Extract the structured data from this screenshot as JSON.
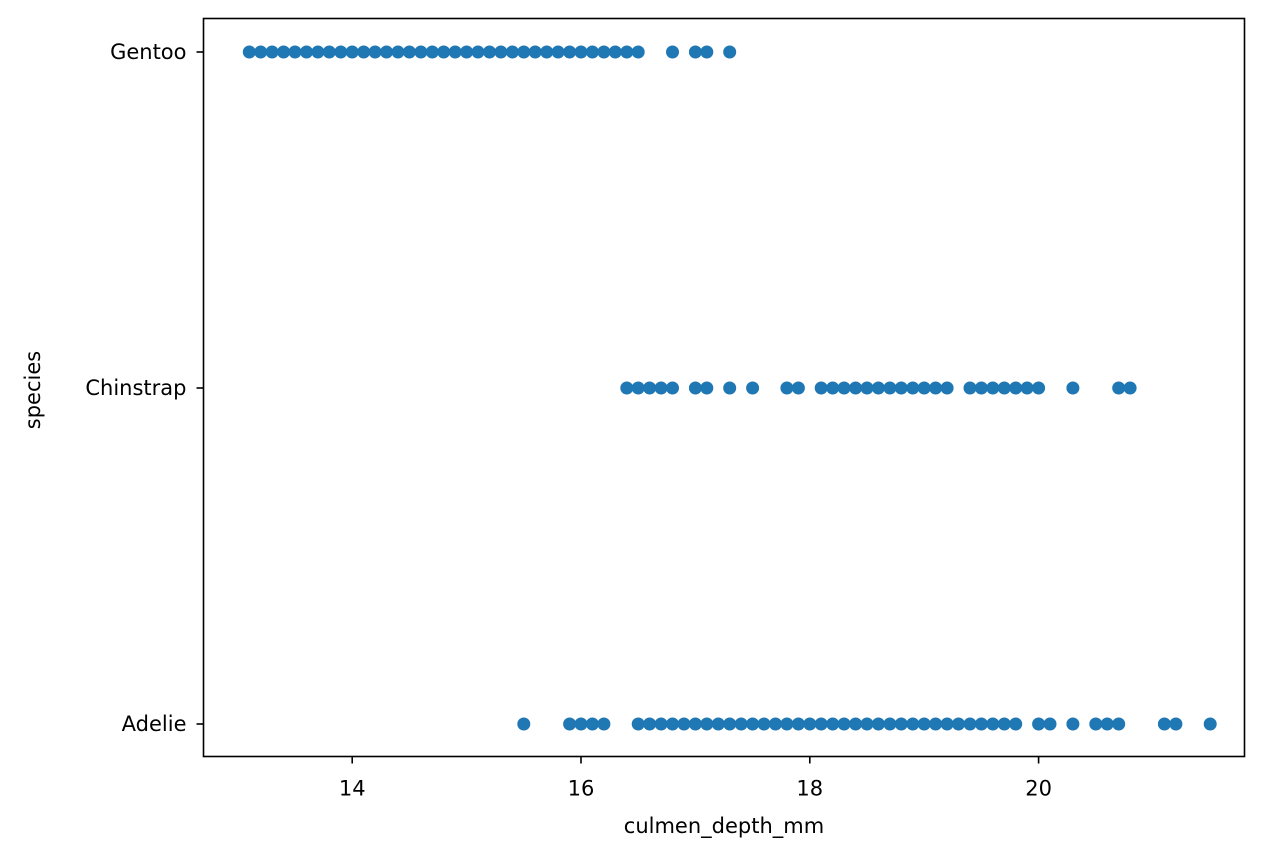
{
  "chart_data": {
    "type": "scatter",
    "title": "",
    "xlabel": "culmen_depth_mm",
    "ylabel": "species",
    "xlim": [
      12.7,
      21.8
    ],
    "xticks": [
      14,
      16,
      18,
      20
    ],
    "xtick_labels": [
      "14",
      "16",
      "18",
      "20"
    ],
    "categories": [
      "Adelie",
      "Chinstrap",
      "Gentoo"
    ],
    "grid": false,
    "marker_color": "#1f77b4",
    "series": [
      {
        "name": "Gentoo",
        "x": [
          13.1,
          13.2,
          13.3,
          13.4,
          13.5,
          13.6,
          13.7,
          13.8,
          13.9,
          14.0,
          14.1,
          14.2,
          14.3,
          14.4,
          14.5,
          14.6,
          14.7,
          14.8,
          14.9,
          15.0,
          15.1,
          15.2,
          15.3,
          15.4,
          15.5,
          15.6,
          15.7,
          15.8,
          15.9,
          16.0,
          16.1,
          16.2,
          16.3,
          16.4,
          16.5,
          16.8,
          17.0,
          17.1,
          17.3
        ]
      },
      {
        "name": "Chinstrap",
        "x": [
          16.4,
          16.5,
          16.6,
          16.7,
          16.8,
          17.0,
          17.1,
          17.3,
          17.5,
          17.8,
          17.9,
          18.1,
          18.2,
          18.3,
          18.4,
          18.5,
          18.6,
          18.7,
          18.8,
          18.9,
          19.0,
          19.1,
          19.2,
          19.4,
          19.5,
          19.6,
          19.7,
          19.8,
          19.9,
          20.0,
          20.3,
          20.7,
          20.8
        ]
      },
      {
        "name": "Adelie",
        "x": [
          15.5,
          15.9,
          16.0,
          16.1,
          16.2,
          16.5,
          16.6,
          16.7,
          16.8,
          16.9,
          17.0,
          17.1,
          17.2,
          17.3,
          17.4,
          17.5,
          17.6,
          17.7,
          17.8,
          17.9,
          18.0,
          18.1,
          18.2,
          18.3,
          18.4,
          18.5,
          18.6,
          18.7,
          18.8,
          18.9,
          19.0,
          19.1,
          19.2,
          19.3,
          19.4,
          19.5,
          19.6,
          19.7,
          19.8,
          20.0,
          20.1,
          20.3,
          20.5,
          20.6,
          20.7,
          21.1,
          21.2,
          21.5
        ]
      }
    ]
  }
}
